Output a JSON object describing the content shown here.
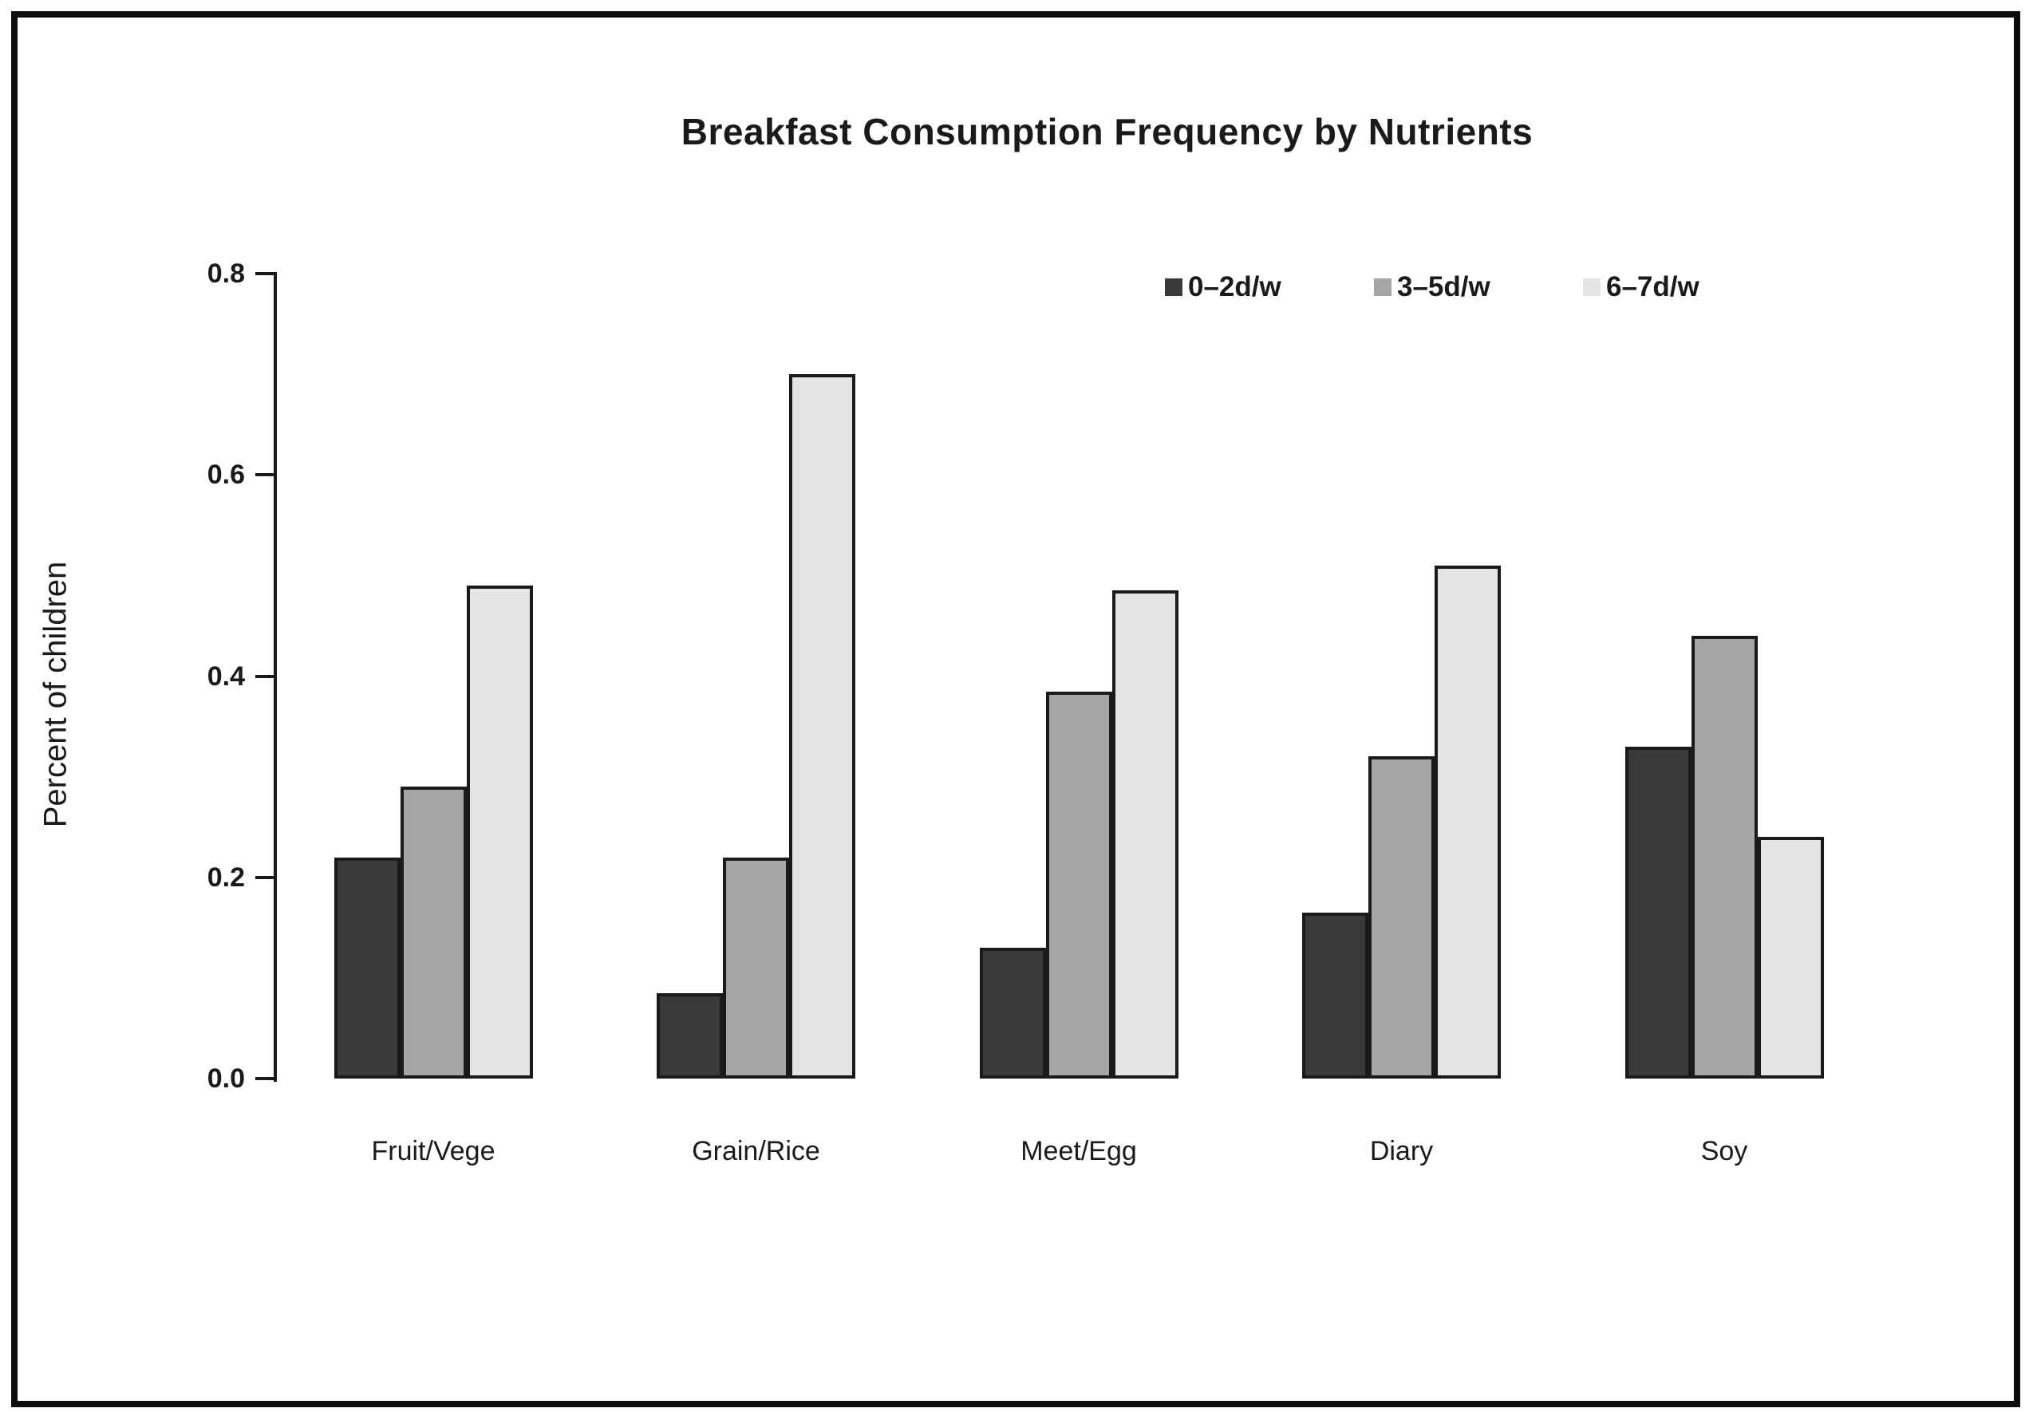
{
  "frame": {
    "border_color": "#0d0d0d",
    "background_color": "#ffffff"
  },
  "chart_data": {
    "type": "bar",
    "title": "Breakfast Consumption Frequency by Nutrients",
    "xlabel": "",
    "ylabel": "Percent of children",
    "categories": [
      "Fruit/Vege",
      "Grain/Rice",
      "Meet/Egg",
      "Diary",
      "Soy"
    ],
    "series": [
      {
        "name": "0–2d/w",
        "color": "#3a3a3a",
        "values": [
          0.22,
          0.085,
          0.13,
          0.165,
          0.33
        ]
      },
      {
        "name": "3–5d/w",
        "color": "#a5a5a5",
        "values": [
          0.29,
          0.22,
          0.385,
          0.32,
          0.44
        ]
      },
      {
        "name": "6–7d/w",
        "color": "#e4e4e4",
        "values": [
          0.49,
          0.7,
          0.485,
          0.51,
          0.24
        ]
      }
    ],
    "ylim": [
      0,
      0.8
    ],
    "yticks": [
      "0.0",
      "0.2",
      "0.4",
      "0.6",
      "0.8"
    ],
    "grid": false,
    "legend_position": "top-right",
    "bar_border_color": "#1a1a1a"
  }
}
